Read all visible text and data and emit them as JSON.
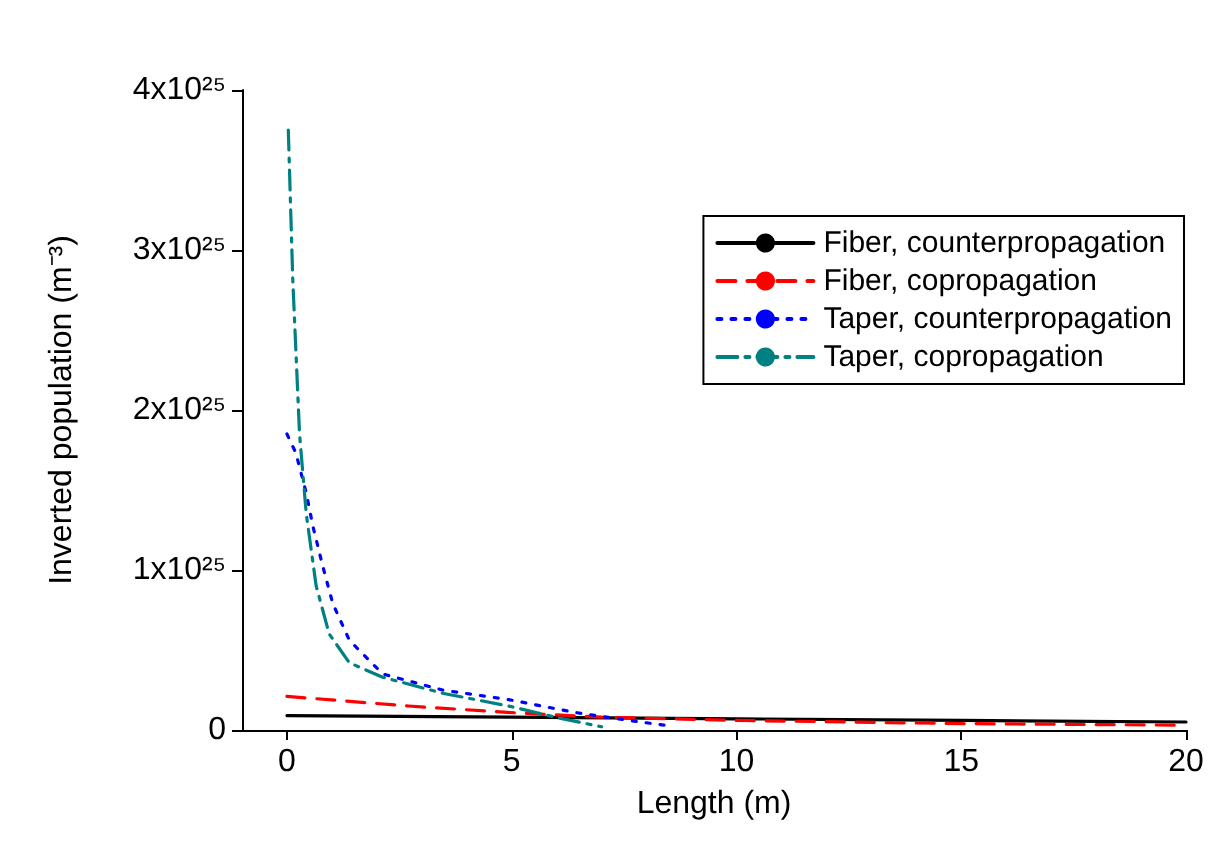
{
  "chart_data": {
    "type": "line",
    "xlabel": "Length (m)",
    "ylabel": "Inverted population (m⁻³)",
    "xlim": [
      -1,
      20
    ],
    "xticks": [
      0,
      5,
      10,
      15,
      20
    ],
    "ylim": [
      0,
      4e+25
    ],
    "yticks": [
      {
        "value": 0,
        "label": "0"
      },
      {
        "value": 1e+25,
        "label": "1x10²⁵"
      },
      {
        "value": 2e+25,
        "label": "2x10²⁵"
      },
      {
        "value": 3e+25,
        "label": "3x10²⁵"
      },
      {
        "value": 4e+25,
        "label": "4x10²⁵"
      }
    ],
    "grid": false,
    "legend": "top right",
    "marker": "none",
    "series": [
      {
        "name": "Fiber, counterpropagation",
        "color": "#000000",
        "line_style": "solid",
        "x": [
          0,
          5,
          10,
          15,
          20
        ],
        "values": [
          9e+23,
          8e+23,
          7e+23,
          6e+23,
          5e+23
        ]
      },
      {
        "name": "Fiber, copropagation",
        "color": "#ff0000",
        "line_style": "dashed",
        "x": [
          0,
          2.7,
          4.9,
          7,
          10,
          15,
          20
        ],
        "values": [
          2.1e+24,
          1.5e+24,
          1.1e+24,
          8e+23,
          6e+23,
          4e+23,
          3e+23
        ]
      },
      {
        "name": "Taper, counterpropagation",
        "color": "#0000ff",
        "line_style": "dotted",
        "x": [
          0,
          0.2,
          0.43,
          0.58,
          0.8,
          1.02,
          1.39,
          2.13,
          3.46,
          4.93,
          6.4,
          7.6,
          8.4
        ],
        "values": [
          1.85e+25,
          1.73e+25,
          1.48e+25,
          1.27e+25,
          1.02e+25,
          7.9e+24,
          5.6e+24,
          3.5e+24,
          2.5e+24,
          1.9e+24,
          1.1e+24,
          6e+23,
          3e+23
        ]
      },
      {
        "name": "Taper, copropagation",
        "color": "#008080",
        "line_style": "dashdot",
        "x": [
          0.03,
          0.13,
          0.28,
          0.43,
          0.65,
          0.94,
          1.39,
          2.13,
          3.46,
          4.93,
          5.97,
          7.0
        ],
        "values": [
          3.75e+25,
          2.81e+25,
          1.85e+25,
          1.35e+25,
          9e+24,
          6e+24,
          4.2e+24,
          3.3e+24,
          2.3e+24,
          1.5e+24,
          8e+23,
          2e+23
        ]
      }
    ]
  }
}
